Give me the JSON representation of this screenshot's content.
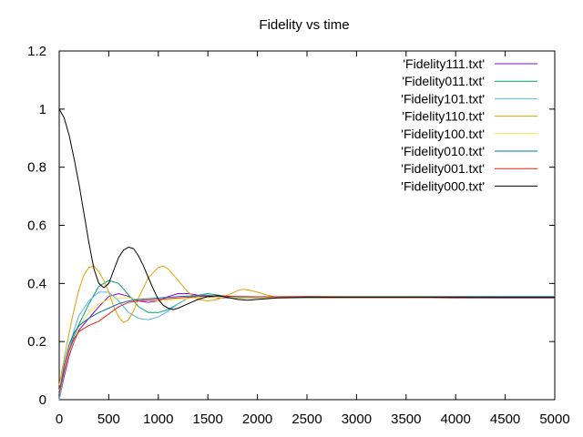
{
  "chart_data": {
    "type": "line",
    "title": "Fidelity vs time",
    "xlabel": "",
    "ylabel": "",
    "xlim": [
      0,
      5000
    ],
    "ylim": [
      0,
      1.2
    ],
    "xticks": [
      0,
      500,
      1000,
      1500,
      2000,
      2500,
      3000,
      3500,
      4000,
      4500,
      5000
    ],
    "yticks": [
      0,
      0.2,
      0.4,
      0.6,
      0.8,
      1,
      1.2
    ],
    "grid": false,
    "legend_position": "top-right",
    "series": [
      {
        "name": "'Fidelity111.txt'",
        "color": "#9400d3",
        "x": [
          0,
          50,
          100,
          150,
          200,
          300,
          400,
          500,
          600,
          700,
          800,
          900,
          1000,
          1100,
          1200,
          1300,
          1400,
          1500,
          1600,
          1800,
          2000,
          2500,
          3000,
          3500,
          4000,
          4500,
          5000
        ],
        "y": [
          0.0,
          0.08,
          0.15,
          0.2,
          0.24,
          0.28,
          0.32,
          0.355,
          0.365,
          0.355,
          0.34,
          0.335,
          0.34,
          0.355,
          0.365,
          0.365,
          0.36,
          0.355,
          0.35,
          0.35,
          0.352,
          0.352,
          0.352,
          0.352,
          0.35,
          0.35,
          0.35
        ]
      },
      {
        "name": "'Fidelity011.txt'",
        "color": "#009e73",
        "x": [
          0,
          50,
          100,
          150,
          200,
          300,
          400,
          500,
          600,
          700,
          800,
          900,
          1000,
          1100,
          1200,
          1300,
          1400,
          1500,
          1600,
          1800,
          2000,
          2500,
          3000,
          3500,
          4000,
          4500,
          5000
        ],
        "y": [
          0.03,
          0.1,
          0.17,
          0.22,
          0.26,
          0.33,
          0.39,
          0.41,
          0.4,
          0.36,
          0.32,
          0.3,
          0.3,
          0.31,
          0.33,
          0.35,
          0.36,
          0.365,
          0.36,
          0.35,
          0.35,
          0.355,
          0.355,
          0.355,
          0.355,
          0.355,
          0.355
        ]
      },
      {
        "name": "'Fidelity101.txt'",
        "color": "#56b4e9",
        "x": [
          0,
          50,
          100,
          150,
          200,
          300,
          400,
          500,
          600,
          700,
          800,
          900,
          1000,
          1100,
          1200,
          1300,
          1400,
          1500,
          1600,
          1800,
          2000,
          2500,
          3000,
          3500,
          4000,
          4500,
          5000
        ],
        "y": [
          0.0,
          0.09,
          0.17,
          0.24,
          0.29,
          0.34,
          0.37,
          0.37,
          0.34,
          0.3,
          0.28,
          0.275,
          0.285,
          0.305,
          0.33,
          0.35,
          0.36,
          0.36,
          0.355,
          0.35,
          0.35,
          0.352,
          0.352,
          0.352,
          0.352,
          0.352,
          0.352
        ]
      },
      {
        "name": "'Fidelity110.txt'",
        "color": "#e69f00",
        "x": [
          0,
          50,
          100,
          150,
          200,
          250,
          300,
          350,
          400,
          450,
          500,
          550,
          600,
          650,
          700,
          750,
          800,
          900,
          1000,
          1050,
          1100,
          1200,
          1300,
          1400,
          1500,
          1600,
          1700,
          1800,
          1850,
          1900,
          2000,
          2100,
          2200,
          2500,
          3000,
          3500,
          4000,
          4500,
          5000
        ],
        "y": [
          0.05,
          0.14,
          0.23,
          0.31,
          0.38,
          0.43,
          0.455,
          0.46,
          0.44,
          0.41,
          0.37,
          0.32,
          0.285,
          0.265,
          0.275,
          0.305,
          0.35,
          0.42,
          0.455,
          0.46,
          0.45,
          0.41,
          0.37,
          0.345,
          0.34,
          0.345,
          0.36,
          0.375,
          0.38,
          0.378,
          0.37,
          0.36,
          0.352,
          0.352,
          0.352,
          0.352,
          0.352,
          0.352,
          0.352
        ]
      },
      {
        "name": "'Fidelity100.txt'",
        "color": "#f0e442",
        "x": [
          0,
          100,
          200,
          300,
          400,
          500,
          600,
          700,
          800,
          1000,
          1200,
          1400,
          1600,
          1800,
          2000,
          2500,
          3000,
          3500,
          4000,
          4500,
          5000
        ],
        "y": [
          0.03,
          0.16,
          0.25,
          0.3,
          0.33,
          0.345,
          0.35,
          0.35,
          0.345,
          0.34,
          0.345,
          0.35,
          0.352,
          0.352,
          0.352,
          0.352,
          0.352,
          0.352,
          0.352,
          0.352,
          0.352
        ]
      },
      {
        "name": "'Fidelity010.txt'",
        "color": "#0072b2",
        "x": [
          0,
          50,
          100,
          150,
          200,
          300,
          400,
          500,
          600,
          700,
          800,
          1000,
          1200,
          1400,
          1600,
          1800,
          2000,
          2500,
          3000,
          3500,
          4000,
          4500,
          5000
        ],
        "y": [
          0.02,
          0.12,
          0.19,
          0.23,
          0.255,
          0.28,
          0.3,
          0.315,
          0.33,
          0.34,
          0.345,
          0.35,
          0.355,
          0.358,
          0.357,
          0.355,
          0.354,
          0.353,
          0.353,
          0.353,
          0.353,
          0.353,
          0.353
        ]
      },
      {
        "name": "'Fidelity001.txt'",
        "color": "#e51e10",
        "x": [
          0,
          50,
          100,
          150,
          200,
          300,
          400,
          500,
          600,
          700,
          800,
          1000,
          1200,
          1400,
          1600,
          1800,
          2000,
          2500,
          3000,
          3500,
          4000,
          4500,
          5000
        ],
        "y": [
          0.02,
          0.1,
          0.17,
          0.21,
          0.235,
          0.255,
          0.27,
          0.295,
          0.32,
          0.335,
          0.34,
          0.345,
          0.35,
          0.355,
          0.357,
          0.355,
          0.354,
          0.355,
          0.353,
          0.353,
          0.353,
          0.352,
          0.352
        ]
      },
      {
        "name": "'Fidelity000.txt'",
        "color": "#000000",
        "x": [
          0,
          50,
          100,
          150,
          200,
          250,
          300,
          350,
          400,
          450,
          500,
          550,
          600,
          650,
          700,
          750,
          800,
          850,
          900,
          950,
          1000,
          1050,
          1100,
          1150,
          1200,
          1300,
          1400,
          1500,
          1600,
          1700,
          1800,
          1900,
          2000,
          2200,
          2500,
          3000,
          3500,
          4000,
          4500,
          5000
        ],
        "y": [
          1.0,
          0.97,
          0.91,
          0.83,
          0.74,
          0.64,
          0.54,
          0.45,
          0.4,
          0.385,
          0.4,
          0.445,
          0.49,
          0.515,
          0.525,
          0.52,
          0.495,
          0.46,
          0.42,
          0.38,
          0.345,
          0.325,
          0.315,
          0.31,
          0.315,
          0.33,
          0.345,
          0.355,
          0.358,
          0.352,
          0.345,
          0.342,
          0.345,
          0.35,
          0.352,
          0.352,
          0.352,
          0.352,
          0.352,
          0.352
        ]
      }
    ]
  }
}
